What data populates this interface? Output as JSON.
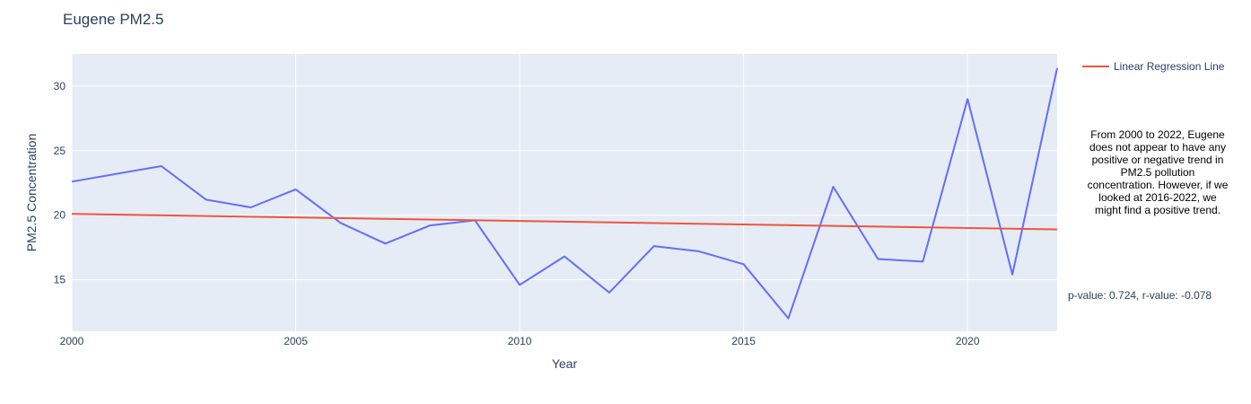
{
  "chart_data": {
    "type": "line",
    "title": "Eugene PM2.5",
    "xlabel": "Year",
    "ylabel": "PM2.5 Concentration",
    "xlim": [
      2000,
      2022
    ],
    "ylim": [
      11,
      32.5
    ],
    "x_ticks": [
      2000,
      2005,
      2010,
      2015,
      2020
    ],
    "y_ticks": [
      15,
      20,
      25,
      30
    ],
    "grid": true,
    "legend_placement": "top-right",
    "series": [
      {
        "name": "",
        "color": "#636efa",
        "x": [
          2000,
          2002,
          2003,
          2004,
          2005,
          2006,
          2007,
          2008,
          2009,
          2010,
          2011,
          2012,
          2013,
          2014,
          2015,
          2016,
          2017,
          2018,
          2019,
          2020,
          2021,
          2022
        ],
        "y": [
          22.6,
          23.8,
          21.2,
          20.6,
          22.0,
          19.4,
          17.8,
          19.2,
          19.6,
          14.6,
          16.8,
          14.0,
          17.6,
          17.2,
          16.2,
          12.0,
          22.2,
          16.6,
          16.4,
          29.0,
          15.4,
          31.4
        ]
      },
      {
        "name": "Linear Regression Line",
        "color": "#ef553b",
        "x": [
          2000,
          2022
        ],
        "y": [
          20.1,
          18.9
        ]
      }
    ],
    "annotations": {
      "note": "From 2000 to 2022, Eugene does not appear to have any positive or negative trend in PM2.5 pollution concentration. However, if we looked at 2016-2022, we might find a positive trend.",
      "stats": "p-value: 0.724, r-value: -0.078"
    }
  }
}
